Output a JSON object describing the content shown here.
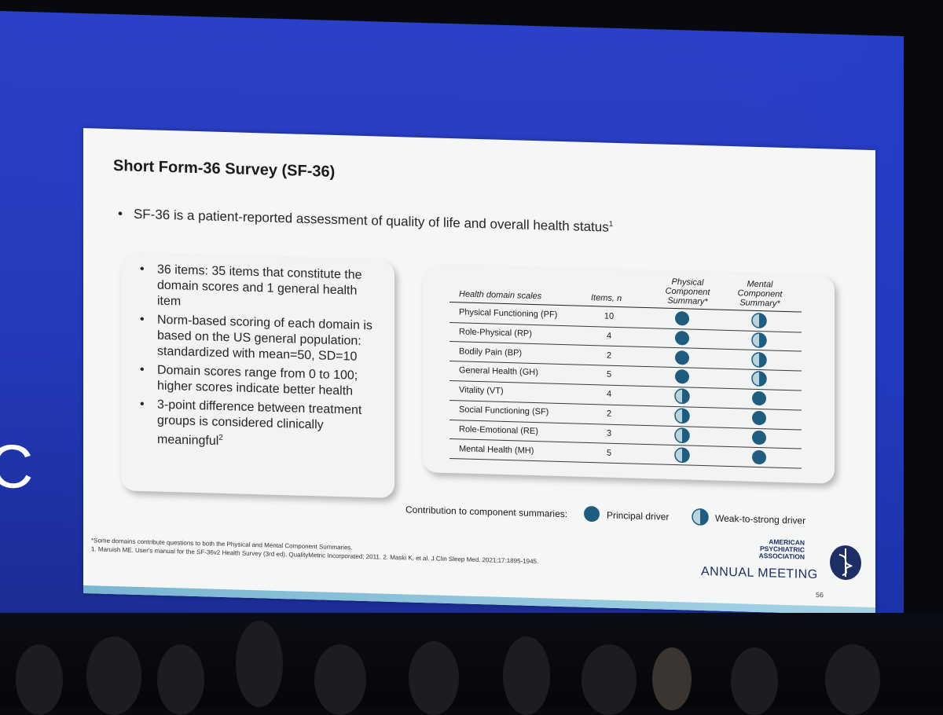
{
  "background_letter": "C",
  "slide": {
    "title": "Short Form-36 Survey (SF-36)",
    "main_bullet": "SF-36 is a patient-reported assessment of quality of life and overall health status",
    "main_bullet_sup": "1",
    "box_items": [
      {
        "text": "36 items: 35 items that constitute the domain scores and 1 general health item",
        "sup": ""
      },
      {
        "text": "Norm-based scoring of each domain is based on the US general population: standardized with mean=50, SD=10",
        "sup": ""
      },
      {
        "text": "Domain scores range from 0 to 100; higher scores indicate better health",
        "sup": ""
      },
      {
        "text": "3-point difference between treatment groups is considered clinically meaningful",
        "sup": "2"
      }
    ],
    "table": {
      "headers": {
        "domain": "Health domain scales",
        "items": "Items, n",
        "physical": "Physical Component Summary*",
        "mental": "Mental Component Summary*"
      },
      "rows": [
        {
          "name": "Physical Functioning (PF)",
          "items": "10",
          "physical": "principal",
          "mental": "weak"
        },
        {
          "name": "Role-Physical (RP)",
          "items": "4",
          "physical": "principal",
          "mental": "weak"
        },
        {
          "name": "Bodily Pain (BP)",
          "items": "2",
          "physical": "principal",
          "mental": "weak"
        },
        {
          "name": "General Health (GH)",
          "items": "5",
          "physical": "principal",
          "mental": "weak"
        },
        {
          "name": "Vitality (VT)",
          "items": "4",
          "physical": "weak",
          "mental": "principal"
        },
        {
          "name": "Social Functioning (SF)",
          "items": "2",
          "physical": "weak",
          "mental": "principal"
        },
        {
          "name": "Role-Emotional (RE)",
          "items": "3",
          "physical": "weak",
          "mental": "principal"
        },
        {
          "name": "Mental Health (MH)",
          "items": "5",
          "physical": "weak",
          "mental": "principal"
        }
      ]
    },
    "legend": {
      "title": "Contribution to component summaries:",
      "principal": "Principal driver",
      "weak": "Weak-to-strong driver"
    },
    "footnotes": [
      "*Some domains contribute questions to both the Physical and Mental Component Summaries.",
      "1. Maruish ME. User's manual for the SF-36v2 Health Survey (3rd ed). QualityMetric Incorporated; 2011. 2. Maski K, et al. J Clin Sleep Med. 2021;17:1895-1945."
    ],
    "org": {
      "line1": "AMERICAN",
      "line2": "PSYCHIATRIC",
      "line3": "ASSOCIATION",
      "meeting": "ANNUAL MEETING"
    },
    "page_number": "56"
  },
  "colors": {
    "principal": "#1f5d80",
    "weak_dark": "#1f5d80",
    "weak_light": "#b9d3df",
    "screen_blue": "#2b40c8"
  }
}
